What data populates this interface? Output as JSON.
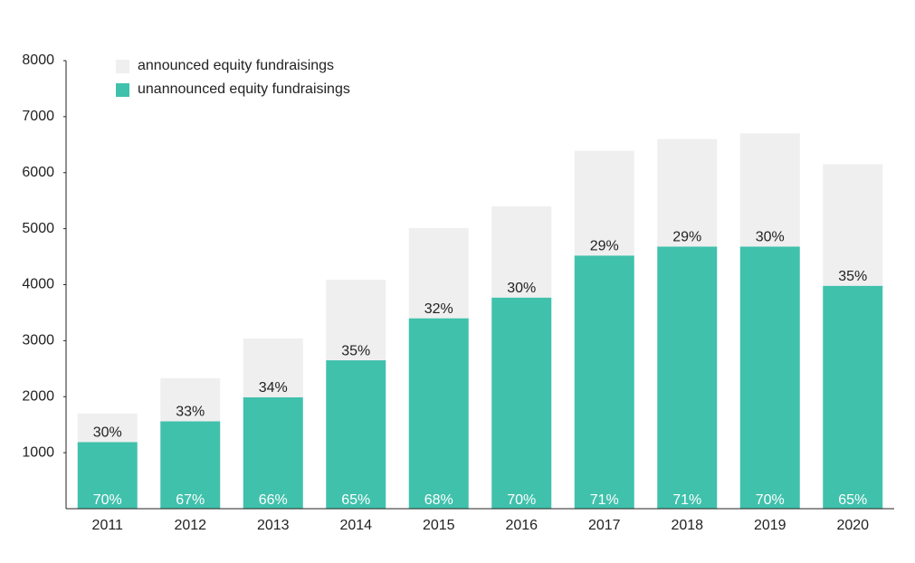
{
  "chart_data": {
    "type": "stacked_bar",
    "categories": [
      "2011",
      "2012",
      "2013",
      "2014",
      "2015",
      "2016",
      "2017",
      "2018",
      "2019",
      "2020"
    ],
    "series": [
      {
        "name": "unannounced equity fundraisings",
        "color": "#40c1ac",
        "values": [
          1190,
          1560,
          1990,
          2650,
          3400,
          3770,
          4520,
          4680,
          4680,
          3980
        ],
        "percent_labels": [
          "70%",
          "67%",
          "66%",
          "65%",
          "68%",
          "70%",
          "71%",
          "71%",
          "70%",
          "65%"
        ]
      },
      {
        "name": "announced equity fundraisings",
        "color": "#efefef",
        "values": [
          510,
          770,
          1050,
          1440,
          1610,
          1630,
          1870,
          1920,
          2020,
          2170
        ],
        "percent_labels": [
          "30%",
          "33%",
          "34%",
          "35%",
          "32%",
          "30%",
          "29%",
          "29%",
          "30%",
          "35%"
        ]
      }
    ],
    "ylim": [
      0,
      8000
    ],
    "yticks": [
      1000,
      2000,
      3000,
      4000,
      5000,
      6000,
      7000,
      8000
    ]
  }
}
